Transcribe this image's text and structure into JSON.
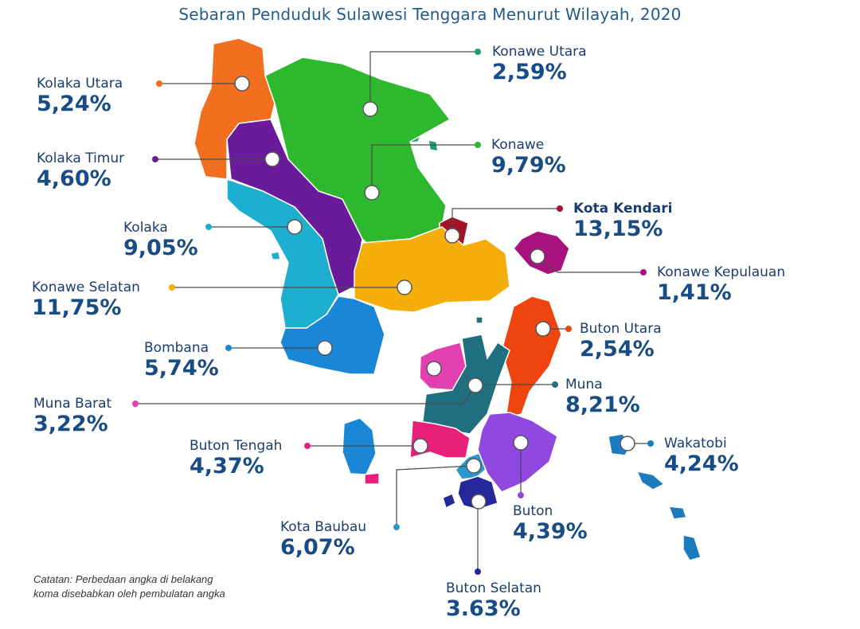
{
  "title": "Sebaran Penduduk Sulawesi Tenggara Menurut Wilayah, 2020",
  "note_line1": "Catatan: Perbedaan angka di belakang",
  "note_line2": "koma disebabkan oleh pembulatan angka",
  "regions": [
    {
      "key": "kolaka-utara",
      "name": "Kolaka Utara",
      "value": "5,24%",
      "color": "#f26f1f"
    },
    {
      "key": "kolaka-timur",
      "name": "Kolaka Timur",
      "value": "4,60%",
      "color": "#6a1b9a"
    },
    {
      "key": "kolaka",
      "name": "Kolaka",
      "value": "9,05%",
      "color": "#1eafd0"
    },
    {
      "key": "konawe-selatan",
      "name": "Konawe Selatan",
      "value": "11,75%",
      "color": "#f5ad0a"
    },
    {
      "key": "bombana",
      "name": "Bombana",
      "value": "5,74%",
      "color": "#1a86d6"
    },
    {
      "key": "muna-barat",
      "name": "Muna Barat",
      "value": "3,22%",
      "color": "#e23fb0"
    },
    {
      "key": "buton-tengah",
      "name": "Buton Tengah",
      "value": "4,37%",
      "color": "#e8207a"
    },
    {
      "key": "kota-baubau",
      "name": "Kota Baubau",
      "value": "6,07%",
      "color": "#2a97d0"
    },
    {
      "key": "buton-selatan",
      "name": "Buton Selatan",
      "value": "3.63%",
      "color": "#24289a"
    },
    {
      "key": "buton",
      "name": "Buton",
      "value": "4,39%",
      "color": "#9048e0"
    },
    {
      "key": "wakatobi",
      "name": "Wakatobi",
      "value": "4,24%",
      "color": "#1a7bbf"
    },
    {
      "key": "muna",
      "name": "Muna",
      "value": "8,21%",
      "color": "#1f6f80"
    },
    {
      "key": "buton-utara",
      "name": "Buton Utara",
      "value": "2,54%",
      "color": "#f0440f"
    },
    {
      "key": "konawe-kepulauan",
      "name": "Konawe Kepulauan",
      "value": "1,41%",
      "color": "#a8127e"
    },
    {
      "key": "kota-kendari",
      "name": "Kota Kendari",
      "value": "13,15%",
      "color": "#a3142b"
    },
    {
      "key": "konawe",
      "name": "Konawe",
      "value": "9,79%",
      "color": "#2eb82e"
    },
    {
      "key": "konawe-utara",
      "name": "Konawe Utara",
      "value": "2,59%",
      "color": "#1e9e6e"
    }
  ]
}
